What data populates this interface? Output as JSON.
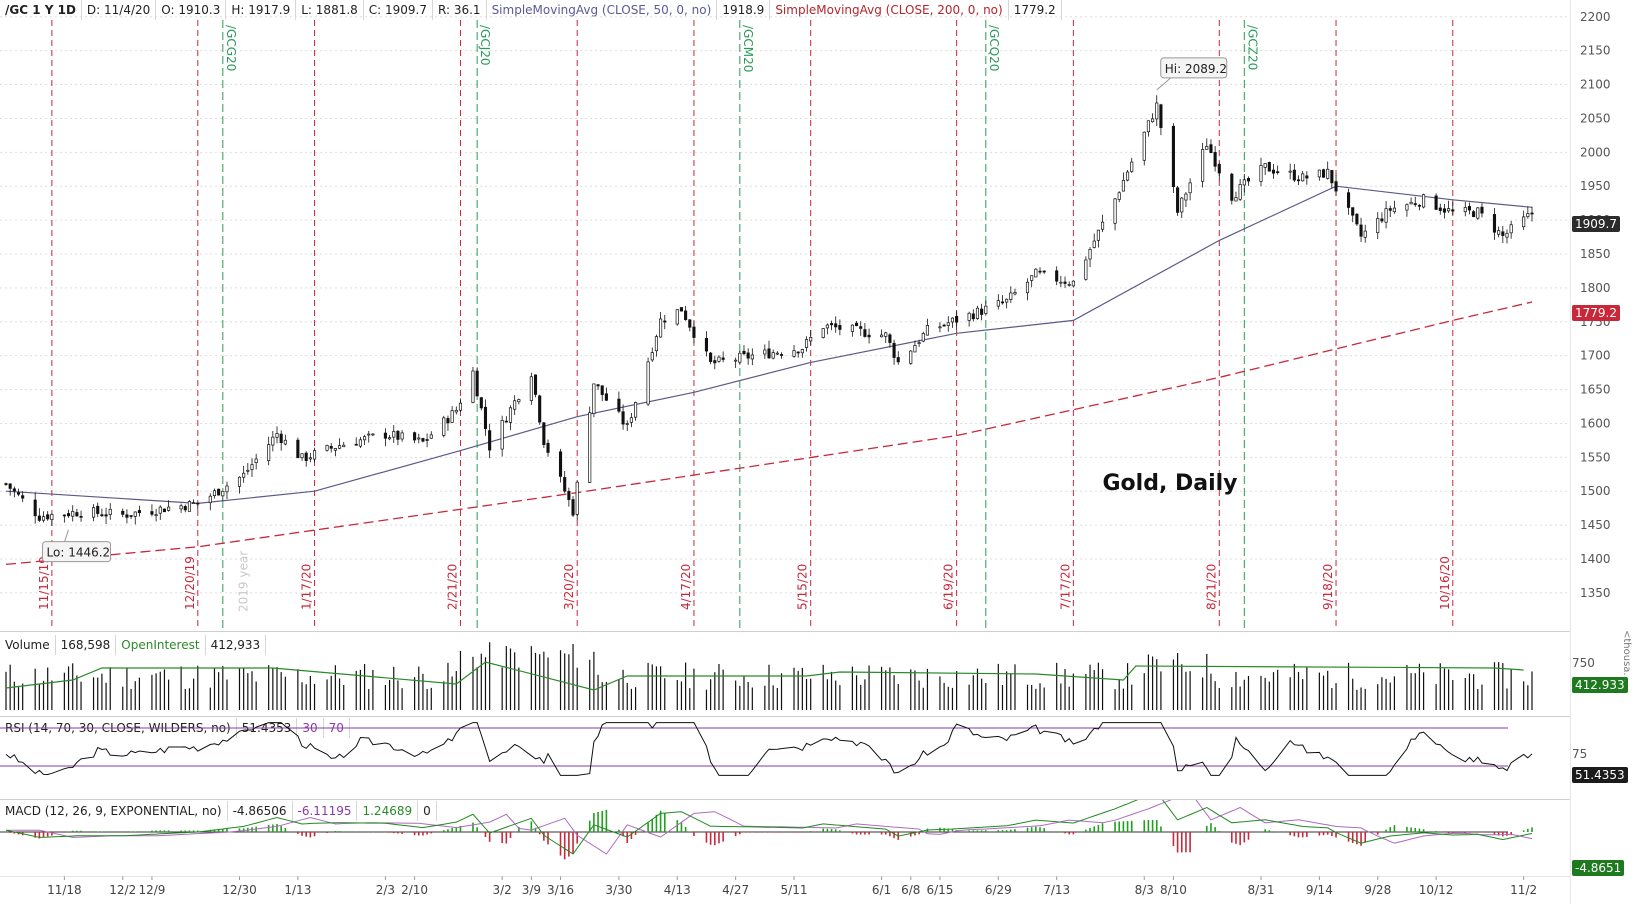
{
  "header": {
    "symbol": "/GC 1 Y 1D",
    "date": "D: 11/4/20",
    "open": "O: 1910.3",
    "high": "H: 1917.9",
    "low": "L: 1881.8",
    "close": "C: 1909.7",
    "range": "R: 36.1",
    "sma50_label": "SimpleMovingAvg (CLOSE, 50, 0, no)",
    "sma50_value": "1918.9",
    "sma200_label": "SimpleMovingAvg (CLOSE, 200, 0, no)",
    "sma200_value": "1779.2"
  },
  "price_panel": {
    "title": "Gold, Daily",
    "hi_label": "Hi: 2089.2",
    "lo_label": "Lo: 1446.2",
    "last_price_tag": "1909.7",
    "sma200_tag": "1779.2",
    "watermark": "2019 year",
    "expiry_dates": [
      "11/15/19",
      "12/20/19",
      "1/17/20",
      "2/21/20",
      "3/20/20",
      "4/17/20",
      "5/15/20",
      "6/19/20",
      "7/17/20",
      "8/21/20",
      "9/18/20",
      "10/16/20"
    ],
    "contract_rolls": [
      "/GCG20",
      "/GCJ20",
      "/GCM20",
      "/GCQ20",
      "/GCZ20"
    ]
  },
  "volume_panel": {
    "label": "Volume",
    "volume_value": "168,598",
    "oi_label": "OpenInterest",
    "oi_value": "412,933",
    "oi_tag": "412.933",
    "axis_label": "750",
    "unit_label": "<thousa..."
  },
  "rsi_panel": {
    "label": "RSI (14, 70, 30, CLOSE, WILDERS, no)",
    "value": "51.4353",
    "level_low": "30",
    "level_high": "70",
    "axis_label": "75",
    "tag": "51.4353"
  },
  "macd_panel": {
    "label": "MACD (12, 26, 9, EXPONENTIAL, no)",
    "value": "-4.86506",
    "avg": "-6.11195",
    "diff": "1.24689",
    "zero": "0",
    "tag": "-4.8651"
  },
  "x_axis_labels": [
    "11/18",
    "12/2",
    "12/9",
    "12/30",
    "1/13",
    "2/3",
    "2/10",
    "3/2",
    "3/9",
    "3/16",
    "3/30",
    "4/13",
    "4/27",
    "5/11",
    "6/1",
    "6/8",
    "6/15",
    "6/29",
    "7/13",
    "8/3",
    "8/10",
    "8/31",
    "9/14",
    "9/28",
    "10/12",
    "11/2"
  ],
  "chart_data": {
    "type": "candlestick",
    "title": "Gold, Daily",
    "y_ticks": [
      1350,
      1400,
      1450,
      1500,
      1550,
      1600,
      1650,
      1700,
      1750,
      1800,
      1850,
      1900,
      1950,
      2000,
      2050,
      2100,
      2150,
      2200
    ],
    "ylim": [
      1310,
      2210
    ],
    "x_tick_labels": [
      "11/18",
      "12/2",
      "12/9",
      "12/30",
      "1/13",
      "2/3",
      "2/10",
      "3/2",
      "3/9",
      "3/16",
      "3/30",
      "4/13",
      "4/27",
      "5/11",
      "6/1",
      "6/8",
      "6/15",
      "6/29",
      "7/13",
      "8/3",
      "8/10",
      "8/31",
      "9/14",
      "9/28",
      "10/12",
      "11/2"
    ],
    "close_path": [
      [
        "11/4/19",
        1511
      ],
      [
        "11/12/19",
        1463
      ],
      [
        "11/22/19",
        1470
      ],
      [
        "12/2/19",
        1465
      ],
      [
        "12/13/19",
        1476
      ],
      [
        "12/20/19",
        1482
      ],
      [
        "12/31/19",
        1524
      ],
      [
        "1/8/20",
        1585
      ],
      [
        "1/14/20",
        1548
      ],
      [
        "1/23/20",
        1568
      ],
      [
        "2/3/20",
        1584
      ],
      [
        "2/12/20",
        1572
      ],
      [
        "2/20/20",
        1620
      ],
      [
        "2/24/20",
        1676
      ],
      [
        "2/28/20",
        1566
      ],
      [
        "3/9/20",
        1676
      ],
      [
        "3/12/20",
        1575
      ],
      [
        "3/19/20",
        1471
      ],
      [
        "3/24/20",
        1660
      ],
      [
        "4/1/20",
        1594
      ],
      [
        "4/9/20",
        1752
      ],
      [
        "4/14/20",
        1769
      ],
      [
        "4/21/20",
        1688
      ],
      [
        "5/1/20",
        1700
      ],
      [
        "5/13/20",
        1712
      ],
      [
        "5/18/20",
        1744
      ],
      [
        "6/2/20",
        1730
      ],
      [
        "6/5/20",
        1690
      ],
      [
        "6/12/20",
        1737
      ],
      [
        "6/19/20",
        1753
      ],
      [
        "7/1/20",
        1780
      ],
      [
        "7/8/20",
        1820
      ],
      [
        "7/17/20",
        1808
      ],
      [
        "7/27/20",
        1931
      ],
      [
        "7/31/20",
        1986
      ],
      [
        "8/6/20",
        2069
      ],
      [
        "8/11/20",
        1912
      ],
      [
        "8/18/20",
        2013
      ],
      [
        "8/24/20",
        1936
      ],
      [
        "9/1/20",
        1978
      ],
      [
        "9/10/20",
        1962
      ],
      [
        "9/16/20",
        1970
      ],
      [
        "9/24/20",
        1876
      ],
      [
        "10/1/20",
        1916
      ],
      [
        "10/9/20",
        1930
      ],
      [
        "10/16/20",
        1911
      ],
      [
        "10/22/20",
        1912
      ],
      [
        "10/28/20",
        1876
      ],
      [
        "11/4/20",
        1909.7
      ]
    ],
    "sma50_path": [
      [
        "11/4/19",
        1500
      ],
      [
        "12/20/19",
        1482
      ],
      [
        "1/17/20",
        1500
      ],
      [
        "2/21/20",
        1560
      ],
      [
        "3/20/20",
        1610
      ],
      [
        "4/17/20",
        1646
      ],
      [
        "5/15/20",
        1690
      ],
      [
        "6/19/20",
        1733
      ],
      [
        "7/17/20",
        1752
      ],
      [
        "8/21/20",
        1870
      ],
      [
        "9/18/20",
        1950
      ],
      [
        "10/16/20",
        1930
      ],
      [
        "11/4/20",
        1918.9
      ]
    ],
    "sma200_path": [
      [
        "11/4/19",
        1392
      ],
      [
        "12/20/19",
        1418
      ],
      [
        "3/20/20",
        1498
      ],
      [
        "6/19/20",
        1582
      ],
      [
        "8/21/20",
        1668
      ],
      [
        "10/16/20",
        1752
      ],
      [
        "11/4/20",
        1779.2
      ]
    ],
    "high": 2089.2,
    "low": 1446.2
  }
}
